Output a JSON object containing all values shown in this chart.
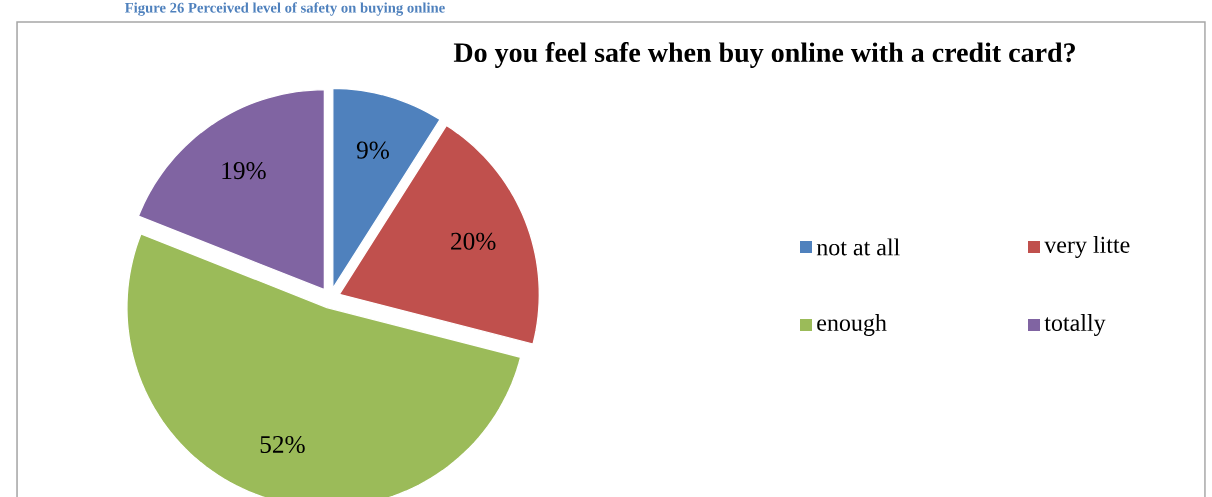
{
  "chart_data": {
    "type": "pie",
    "title": "Do you feel safe when buy online with a credit card?",
    "annotations": [
      "Figure 26 Perceived level of safety on buying online"
    ],
    "categories": [
      "not at all",
      "very litte",
      "enough",
      "totally"
    ],
    "values": [
      9,
      20,
      52,
      19
    ],
    "colors": [
      "#4f81bd",
      "#c0504d",
      "#9bbb59",
      "#8064a2"
    ],
    "value_labels": [
      "9%",
      "20%",
      "52%",
      "19%"
    ],
    "legend": "right"
  }
}
